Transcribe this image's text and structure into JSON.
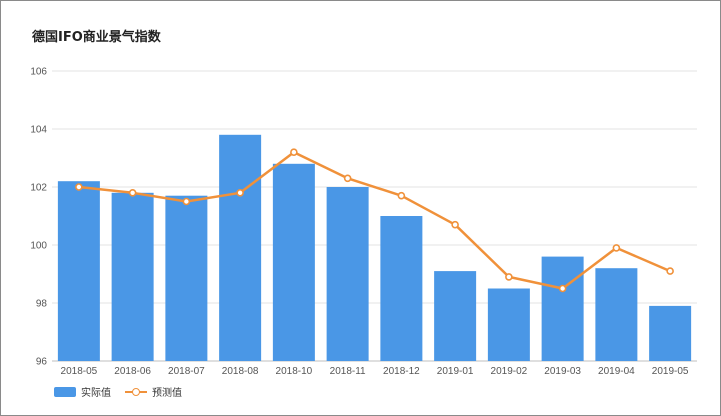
{
  "chart_data": {
    "type": "bar",
    "title": "德国IFO商业景气指数",
    "categories": [
      "2018-05",
      "2018-06",
      "2018-07",
      "2018-08",
      "2018-10",
      "2018-11",
      "2018-12",
      "2019-01",
      "2019-02",
      "2019-03",
      "2019-04",
      "2019-05"
    ],
    "series": [
      {
        "name": "实际值",
        "type": "bar",
        "color": "#4a97e6",
        "values": [
          102.2,
          101.8,
          101.7,
          103.8,
          102.8,
          102.0,
          101.0,
          99.1,
          98.5,
          99.6,
          99.2,
          97.9
        ]
      },
      {
        "name": "预测值",
        "type": "line",
        "color": "#f0913a",
        "values": [
          102.0,
          101.8,
          101.5,
          101.8,
          103.2,
          102.3,
          101.7,
          100.7,
          98.9,
          98.5,
          99.9,
          99.1
        ]
      }
    ],
    "ylim": [
      96,
      106
    ],
    "yticks": [
      "96",
      "98",
      "100",
      "102",
      "104",
      "106"
    ],
    "grid": true,
    "legend": "bottom-left"
  }
}
